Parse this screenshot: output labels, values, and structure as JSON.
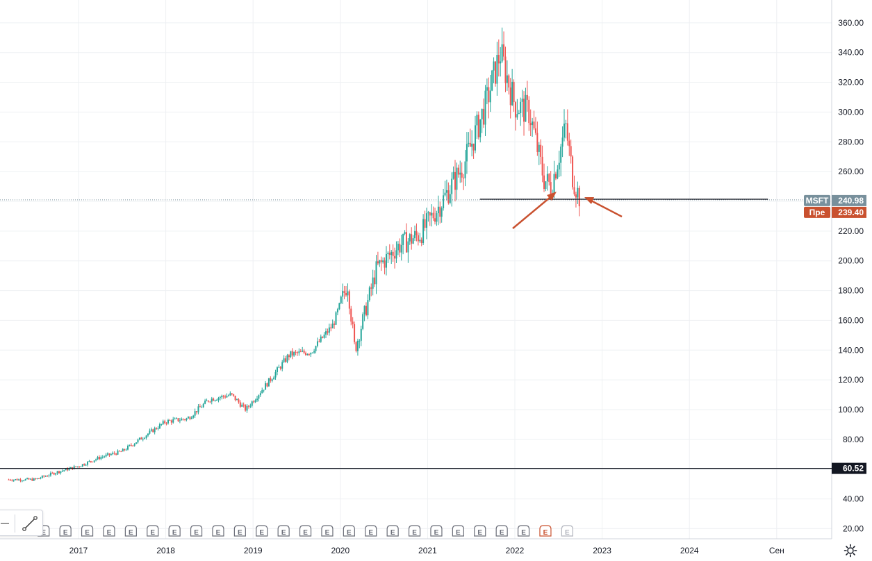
{
  "chart_data": {
    "type": "candlestick",
    "symbol": "MSFT",
    "x": [
      "2016-07",
      "2016-10",
      "2017-01",
      "2017-04",
      "2017-07",
      "2017-10",
      "2018-01",
      "2018-04",
      "2018-07",
      "2018-10",
      "2018-12",
      "2019-03",
      "2019-06",
      "2019-09",
      "2019-12",
      "2020-02",
      "2020-03",
      "2020-06",
      "2020-09",
      "2020-12",
      "2021-03",
      "2021-06",
      "2021-09",
      "2021-11",
      "2022-01",
      "2022-03",
      "2022-05",
      "2022-06",
      "2022-08",
      "2022-09",
      "2022-10"
    ],
    "series": [
      {
        "values": [
          53,
          58,
          62,
          68,
          72,
          82,
          92,
          94,
          107,
          110,
          100,
          118,
          137,
          139,
          157,
          185,
          140,
          195,
          210,
          218,
          240,
          265,
          305,
          340,
          305,
          300,
          255,
          250,
          290,
          255,
          241
        ]
      }
    ],
    "xtick_labels": [
      "2017",
      "2018",
      "2019",
      "2020",
      "2021",
      "2022",
      "2023",
      "2024",
      "Сен"
    ],
    "ytick_labels": [
      "360.00",
      "340.00",
      "320.00",
      "300.00",
      "280.00",
      "260.00",
      "240.00",
      "220.00",
      "200.00",
      "180.00",
      "160.00",
      "140.00",
      "120.00",
      "100.00",
      "80.00",
      "60.00",
      "40.00",
      "20.00"
    ],
    "ytick_values": [
      360,
      340,
      320,
      300,
      280,
      260,
      240,
      220,
      200,
      180,
      160,
      140,
      120,
      100,
      80,
      60,
      40,
      20
    ],
    "ylim": [
      9,
      366
    ],
    "grid": true,
    "price_tags": [
      {
        "label": "MSFT",
        "value": "240.98",
        "color": "#78909c"
      },
      {
        "label": "Пре",
        "value": "239.40",
        "color": "#c9512f"
      },
      {
        "label": "",
        "value": "60.52",
        "color": "#131722"
      }
    ],
    "horizontal_lines": [
      240.98,
      60.52
    ],
    "earnings_marker": "E",
    "colors": {
      "up": "#26a69a",
      "down": "#ef5350",
      "arrow": "#c9512f",
      "grid": "#eef0f3"
    }
  }
}
